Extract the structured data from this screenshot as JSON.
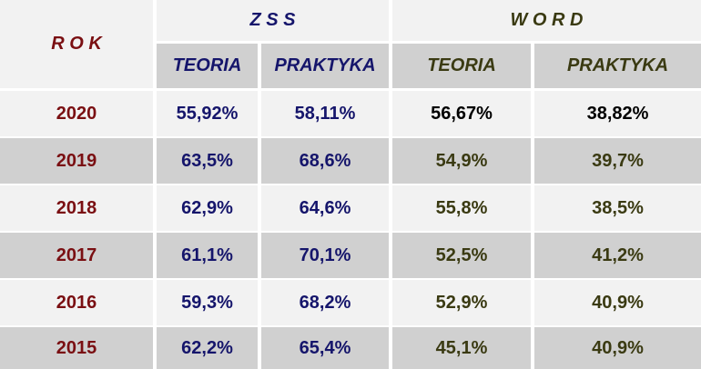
{
  "header": {
    "rok": "R O K",
    "groups": [
      {
        "title": "Z S S",
        "columns": [
          "TEORIA",
          "PRAKTYKA"
        ]
      },
      {
        "title": "W O R D",
        "columns": [
          "TEORIA",
          "PRAKTYKA"
        ]
      }
    ]
  },
  "table": {
    "rows": [
      [
        "2020",
        "55,92%",
        "58,11%",
        "56,67%",
        "38,82%"
      ],
      [
        "2019",
        "63,5%",
        "68,6%",
        "54,9%",
        "39,7%"
      ],
      [
        "2018",
        "62,9%",
        "64,6%",
        "55,8%",
        "38,5%"
      ],
      [
        "2017",
        "61,1%",
        "70,1%",
        "52,5%",
        "41,2%"
      ],
      [
        "2016",
        "59,3%",
        "68,2%",
        "52,9%",
        "40,9%"
      ],
      [
        "2015",
        "62,2%",
        "65,4%",
        "45,1%",
        "40,9%"
      ]
    ]
  }
}
